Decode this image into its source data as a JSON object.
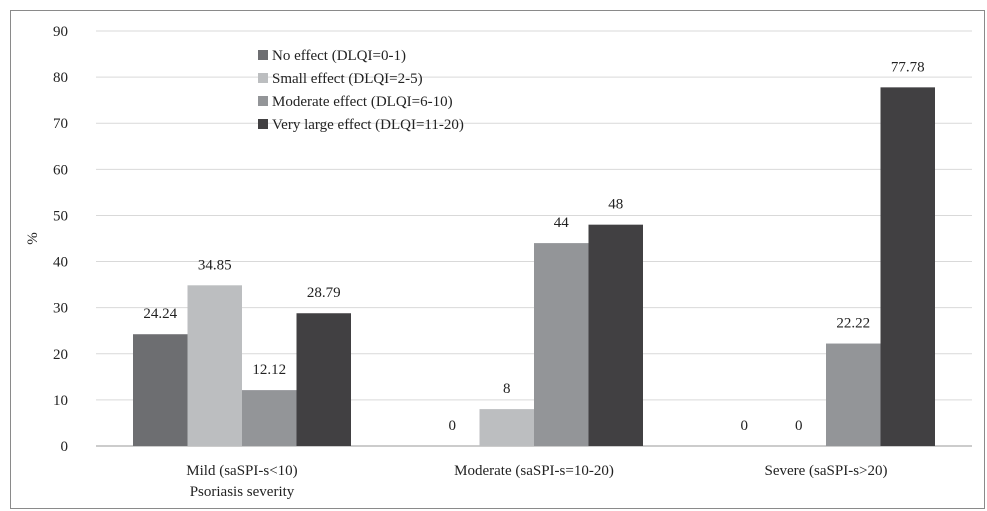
{
  "chart_data": {
    "type": "bar",
    "title": "",
    "xlabel": "Psoriasis severity",
    "ylabel": "%",
    "ylim": [
      0,
      90
    ],
    "yticks": [
      0,
      10,
      20,
      30,
      40,
      50,
      60,
      70,
      80,
      90
    ],
    "grid": "horizontal",
    "legend_position": "top-left",
    "categories": [
      "Mild  (saSPI-s<10)",
      "Moderate (saSPI-s=10-20)",
      "Severe (saSPI-s>20)"
    ],
    "series": [
      {
        "name": "No effect (DLQI=0-1)",
        "color": "#6d6e71",
        "values": [
          24.24,
          0,
          0
        ],
        "labels": [
          "24.24",
          "0",
          "0"
        ]
      },
      {
        "name": "Small effect (DLQI=2-5)",
        "color": "#bcbec0",
        "values": [
          34.85,
          8,
          0
        ],
        "labels": [
          "34.85",
          "8",
          "0"
        ]
      },
      {
        "name": "Moderate effect (DLQI=6-10)",
        "color": "#939598",
        "values": [
          12.12,
          44,
          22.22
        ],
        "labels": [
          "12.12",
          "44",
          "22.22"
        ]
      },
      {
        "name": "Very large effect (DLQI=11-20)",
        "color": "#414042",
        "values": [
          28.79,
          48,
          77.78
        ],
        "labels": [
          "28.79",
          "48",
          "77.78"
        ]
      }
    ]
  }
}
